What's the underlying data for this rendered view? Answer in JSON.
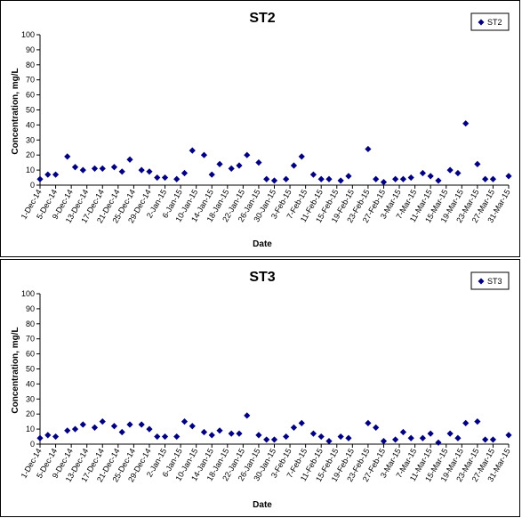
{
  "chart_data": [
    {
      "type": "scatter",
      "title": "ST2",
      "xlabel": "Date",
      "ylabel": "Concentration, mg/L",
      "ylim": [
        0,
        100
      ],
      "yticks": [
        0,
        10,
        20,
        30,
        40,
        50,
        60,
        70,
        80,
        90,
        100
      ],
      "xlim": [
        "1-Dec-14",
        "31-Mar-15"
      ],
      "xtick_labels": [
        "1-Dec-14",
        "5-Dec-14",
        "9-Dec-14",
        "13-Dec-14",
        "17-Dec-14",
        "21-Dec-14",
        "25-Dec-14",
        "29-Dec-14",
        "2-Jan-15",
        "6-Jan-15",
        "10-Jan-15",
        "14-Jan-15",
        "18-Jan-15",
        "22-Jan-15",
        "26-Jan-15",
        "30-Jan-15",
        "3-Feb-15",
        "7-Feb-15",
        "11-Feb-15",
        "15-Feb-15",
        "19-Feb-15",
        "23-Feb-15",
        "27-Feb-15",
        "3-Mar-15",
        "7-Mar-15",
        "11-Mar-15",
        "15-Mar-15",
        "19-Mar-15",
        "23-Mar-15",
        "27-Mar-15",
        "31-Mar-15"
      ],
      "legend": {
        "position": "top-right",
        "entries": [
          "ST2"
        ]
      },
      "grid": false,
      "marker_color": "#000080",
      "series": [
        {
          "name": "ST2",
          "points": [
            {
              "x": "1-Dec-14",
              "y": 4
            },
            {
              "x": "3-Dec-14",
              "y": 7
            },
            {
              "x": "5-Dec-14",
              "y": 7
            },
            {
              "x": "8-Dec-14",
              "y": 19
            },
            {
              "x": "10-Dec-14",
              "y": 12
            },
            {
              "x": "12-Dec-14",
              "y": 10
            },
            {
              "x": "15-Dec-14",
              "y": 11
            },
            {
              "x": "17-Dec-14",
              "y": 11
            },
            {
              "x": "20-Dec-14",
              "y": 12
            },
            {
              "x": "22-Dec-14",
              "y": 9
            },
            {
              "x": "24-Dec-14",
              "y": 17
            },
            {
              "x": "27-Dec-14",
              "y": 10
            },
            {
              "x": "29-Dec-14",
              "y": 9
            },
            {
              "x": "31-Dec-14",
              "y": 5
            },
            {
              "x": "2-Jan-15",
              "y": 5
            },
            {
              "x": "5-Jan-15",
              "y": 4
            },
            {
              "x": "7-Jan-15",
              "y": 8
            },
            {
              "x": "9-Jan-15",
              "y": 23
            },
            {
              "x": "12-Jan-15",
              "y": 20
            },
            {
              "x": "14-Jan-15",
              "y": 7
            },
            {
              "x": "16-Jan-15",
              "y": 14
            },
            {
              "x": "19-Jan-15",
              "y": 11
            },
            {
              "x": "21-Jan-15",
              "y": 13
            },
            {
              "x": "23-Jan-15",
              "y": 20
            },
            {
              "x": "26-Jan-15",
              "y": 15
            },
            {
              "x": "28-Jan-15",
              "y": 4
            },
            {
              "x": "30-Jan-15",
              "y": 3
            },
            {
              "x": "2-Feb-15",
              "y": 4
            },
            {
              "x": "4-Feb-15",
              "y": 13
            },
            {
              "x": "6-Feb-15",
              "y": 19
            },
            {
              "x": "9-Feb-15",
              "y": 7
            },
            {
              "x": "11-Feb-15",
              "y": 4
            },
            {
              "x": "13-Feb-15",
              "y": 4
            },
            {
              "x": "16-Feb-15",
              "y": 3
            },
            {
              "x": "18-Feb-15",
              "y": 6
            },
            {
              "x": "23-Feb-15",
              "y": 24
            },
            {
              "x": "25-Feb-15",
              "y": 4
            },
            {
              "x": "27-Feb-15",
              "y": 2
            },
            {
              "x": "2-Mar-15",
              "y": 4
            },
            {
              "x": "4-Mar-15",
              "y": 4
            },
            {
              "x": "6-Mar-15",
              "y": 5
            },
            {
              "x": "9-Mar-15",
              "y": 8
            },
            {
              "x": "11-Mar-15",
              "y": 6
            },
            {
              "x": "13-Mar-15",
              "y": 3
            },
            {
              "x": "16-Mar-15",
              "y": 10
            },
            {
              "x": "18-Mar-15",
              "y": 8
            },
            {
              "x": "20-Mar-15",
              "y": 41
            },
            {
              "x": "23-Mar-15",
              "y": 14
            },
            {
              "x": "25-Mar-15",
              "y": 4
            },
            {
              "x": "27-Mar-15",
              "y": 4
            },
            {
              "x": "31-Mar-15",
              "y": 6
            }
          ]
        }
      ]
    },
    {
      "type": "scatter",
      "title": "ST3",
      "xlabel": "Date",
      "ylabel": "Concentration, mg/L",
      "ylim": [
        0,
        100
      ],
      "yticks": [
        0,
        10,
        20,
        30,
        40,
        50,
        60,
        70,
        80,
        90,
        100
      ],
      "xlim": [
        "1-Dec-14",
        "31-Mar-15"
      ],
      "xtick_labels": [
        "1-Dec-14",
        "5-Dec-14",
        "9-Dec-14",
        "13-Dec-14",
        "17-Dec-14",
        "21-Dec-14",
        "25-Dec-14",
        "29-Dec-14",
        "2-Jan-15",
        "6-Jan-15",
        "10-Jan-15",
        "14-Jan-15",
        "18-Jan-15",
        "22-Jan-15",
        "26-Jan-15",
        "30-Jan-15",
        "3-Feb-15",
        "7-Feb-15",
        "11-Feb-15",
        "15-Feb-15",
        "19-Feb-15",
        "23-Feb-15",
        "27-Feb-15",
        "3-Mar-15",
        "7-Mar-15",
        "11-Mar-15",
        "15-Mar-15",
        "19-Mar-15",
        "23-Mar-15",
        "27-Mar-15",
        "31-Mar-15"
      ],
      "legend": {
        "position": "top-right",
        "entries": [
          "ST3"
        ]
      },
      "grid": false,
      "marker_color": "#000080",
      "series": [
        {
          "name": "ST3",
          "points": [
            {
              "x": "1-Dec-14",
              "y": 4
            },
            {
              "x": "3-Dec-14",
              "y": 6
            },
            {
              "x": "5-Dec-14",
              "y": 5
            },
            {
              "x": "8-Dec-14",
              "y": 9
            },
            {
              "x": "10-Dec-14",
              "y": 10
            },
            {
              "x": "12-Dec-14",
              "y": 13
            },
            {
              "x": "15-Dec-14",
              "y": 11
            },
            {
              "x": "17-Dec-14",
              "y": 15
            },
            {
              "x": "20-Dec-14",
              "y": 12
            },
            {
              "x": "22-Dec-14",
              "y": 8
            },
            {
              "x": "24-Dec-14",
              "y": 13
            },
            {
              "x": "27-Dec-14",
              "y": 13
            },
            {
              "x": "29-Dec-14",
              "y": 10
            },
            {
              "x": "31-Dec-14",
              "y": 5
            },
            {
              "x": "2-Jan-15",
              "y": 5
            },
            {
              "x": "5-Jan-15",
              "y": 5
            },
            {
              "x": "7-Jan-15",
              "y": 15
            },
            {
              "x": "9-Jan-15",
              "y": 12
            },
            {
              "x": "12-Jan-15",
              "y": 8
            },
            {
              "x": "14-Jan-15",
              "y": 6
            },
            {
              "x": "16-Jan-15",
              "y": 9
            },
            {
              "x": "19-Jan-15",
              "y": 7
            },
            {
              "x": "21-Jan-15",
              "y": 7
            },
            {
              "x": "23-Jan-15",
              "y": 19
            },
            {
              "x": "26-Jan-15",
              "y": 6
            },
            {
              "x": "28-Jan-15",
              "y": 3
            },
            {
              "x": "30-Jan-15",
              "y": 3
            },
            {
              "x": "2-Feb-15",
              "y": 5
            },
            {
              "x": "4-Feb-15",
              "y": 11
            },
            {
              "x": "6-Feb-15",
              "y": 14
            },
            {
              "x": "9-Feb-15",
              "y": 7
            },
            {
              "x": "11-Feb-15",
              "y": 5
            },
            {
              "x": "13-Feb-15",
              "y": 2
            },
            {
              "x": "16-Feb-15",
              "y": 5
            },
            {
              "x": "18-Feb-15",
              "y": 4
            },
            {
              "x": "23-Feb-15",
              "y": 14
            },
            {
              "x": "25-Feb-15",
              "y": 11
            },
            {
              "x": "27-Feb-15",
              "y": 2
            },
            {
              "x": "2-Mar-15",
              "y": 3
            },
            {
              "x": "4-Mar-15",
              "y": 8
            },
            {
              "x": "6-Mar-15",
              "y": 4
            },
            {
              "x": "9-Mar-15",
              "y": 4
            },
            {
              "x": "11-Mar-15",
              "y": 7
            },
            {
              "x": "13-Mar-15",
              "y": 1
            },
            {
              "x": "16-Mar-15",
              "y": 7
            },
            {
              "x": "18-Mar-15",
              "y": 4
            },
            {
              "x": "20-Mar-15",
              "y": 14
            },
            {
              "x": "23-Mar-15",
              "y": 15
            },
            {
              "x": "25-Mar-15",
              "y": 3
            },
            {
              "x": "27-Mar-15",
              "y": 3
            },
            {
              "x": "31-Mar-15",
              "y": 6
            }
          ]
        }
      ]
    }
  ]
}
